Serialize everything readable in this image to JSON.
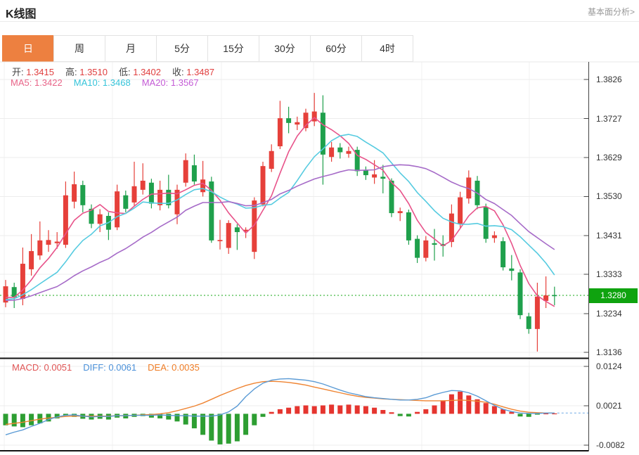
{
  "header": {
    "title": "K线图",
    "link": "基本面分析>"
  },
  "tabs": {
    "items": [
      "日",
      "周",
      "月",
      "5分",
      "15分",
      "30分",
      "60分",
      "4时"
    ],
    "active_index": 0
  },
  "readout": {
    "ohlc": [
      {
        "name": "open",
        "label": "开:",
        "value": "1.3415"
      },
      {
        "name": "high",
        "label": "高:",
        "value": "1.3510"
      },
      {
        "name": "low",
        "label": "低:",
        "value": "1.3402"
      },
      {
        "name": "close",
        "label": "收:",
        "value": "1.3487"
      }
    ],
    "ma": [
      {
        "name": "ma5",
        "label": "MA5:",
        "value": "1.3422",
        "color": "#e86488"
      },
      {
        "name": "ma10",
        "label": "MA10:",
        "value": "1.3468",
        "color": "#35c4da"
      },
      {
        "name": "ma20",
        "label": "MA20:",
        "value": "1.3567",
        "color": "#c45bd6"
      }
    ],
    "macd": [
      {
        "name": "macd",
        "label": "MACD:",
        "value": "0.0051",
        "color": "#e05555"
      },
      {
        "name": "diff",
        "label": "DIFF:",
        "value": "0.0061",
        "color": "#4a90d9"
      },
      {
        "name": "dea",
        "label": "DEA:",
        "value": "0.0035",
        "color": "#ef7d26"
      }
    ]
  },
  "axis": {
    "main_labels": [
      "1.3826",
      "1.3727",
      "1.3629",
      "1.3530",
      "1.3431",
      "1.3333",
      "1.3234",
      "1.3136"
    ],
    "macd_labels": [
      "0.0124",
      "0.0021",
      "-0.0082"
    ],
    "current_price": "1.3280"
  },
  "colors": {
    "up": "#e6403a",
    "down": "#1fa04c",
    "ma5": "#e8538a",
    "ma10": "#56cbe0",
    "ma20": "#a66bc8",
    "diff": "#5b9bd5",
    "dea": "#ef8432",
    "hist_up": "#e5352f",
    "hist_down": "#2d9e32",
    "price_tag": "#0fa30f",
    "dotted_line": "#17a817",
    "tab_active": "#ed8040",
    "value_red": "#e03e3e",
    "label_dark": "#444444",
    "link_gray": "#999999",
    "axis_text": "#333333"
  },
  "chart_data": {
    "type": "candlestick",
    "panels": [
      "price",
      "macd"
    ],
    "ylim": [
      1.3136,
      1.3826
    ],
    "macd_ylim": [
      -0.0082,
      0.0124
    ],
    "current_price": 1.328,
    "candles": [
      [
        1.3262,
        1.3319,
        1.325,
        1.3303
      ],
      [
        1.3301,
        1.3312,
        1.3248,
        1.3275
      ],
      [
        1.3271,
        1.3401,
        1.3255,
        1.336
      ],
      [
        1.3346,
        1.3435,
        1.333,
        1.3392
      ],
      [
        1.3381,
        1.3467,
        1.337,
        1.3419
      ],
      [
        1.3408,
        1.3445,
        1.339,
        1.342
      ],
      [
        1.3412,
        1.344,
        1.3398,
        1.3416
      ],
      [
        1.3408,
        1.3568,
        1.34,
        1.3533
      ],
      [
        1.3517,
        1.3593,
        1.35,
        1.3561
      ],
      [
        1.3559,
        1.357,
        1.349,
        1.3508
      ],
      [
        1.3499,
        1.351,
        1.345,
        1.3461
      ],
      [
        1.3461,
        1.3498,
        1.344,
        1.3485
      ],
      [
        1.3481,
        1.349,
        1.342,
        1.3446
      ],
      [
        1.3452,
        1.356,
        1.3445,
        1.3543
      ],
      [
        1.3533,
        1.3545,
        1.349,
        1.3499
      ],
      [
        1.3515,
        1.3618,
        1.3505,
        1.3556
      ],
      [
        1.3547,
        1.3614,
        1.3535,
        1.357
      ],
      [
        1.3565,
        1.3575,
        1.35,
        1.3512
      ],
      [
        1.3508,
        1.357,
        1.3495,
        1.3547
      ],
      [
        1.3547,
        1.3585,
        1.35,
        1.3508
      ],
      [
        1.3485,
        1.356,
        1.346,
        1.3547
      ],
      [
        1.3565,
        1.3639,
        1.3555,
        1.3622
      ],
      [
        1.3609,
        1.3636,
        1.356,
        1.3568
      ],
      [
        1.3541,
        1.362,
        1.353,
        1.3573
      ],
      [
        1.3568,
        1.358,
        1.3413,
        1.3419
      ],
      [
        1.3417,
        1.3471,
        1.3396,
        1.342
      ],
      [
        1.34,
        1.347,
        1.3385,
        1.3463
      ],
      [
        1.3452,
        1.346,
        1.3395,
        1.344
      ],
      [
        1.3442,
        1.3452,
        1.3425,
        1.3446
      ],
      [
        1.339,
        1.3528,
        1.3372,
        1.352
      ],
      [
        1.351,
        1.3618,
        1.3505,
        1.3607
      ],
      [
        1.36,
        1.3662,
        1.3592,
        1.3645
      ],
      [
        1.3657,
        1.3772,
        1.365,
        1.3728
      ],
      [
        1.3728,
        1.3757,
        1.369,
        1.3716
      ],
      [
        1.3712,
        1.3732,
        1.3698,
        1.3718
      ],
      [
        1.3703,
        1.3752,
        1.3695,
        1.3742
      ],
      [
        1.372,
        1.3792,
        1.3708,
        1.3745
      ],
      [
        1.3742,
        1.3786,
        1.356,
        1.3636
      ],
      [
        1.363,
        1.3668,
        1.3618,
        1.3654
      ],
      [
        1.3654,
        1.3665,
        1.3626,
        1.3642
      ],
      [
        1.3638,
        1.3656,
        1.3628,
        1.3645
      ],
      [
        1.3648,
        1.3656,
        1.3582,
        1.3594
      ],
      [
        1.3596,
        1.3606,
        1.3572,
        1.3584
      ],
      [
        1.3578,
        1.3622,
        1.3562,
        1.3586
      ],
      [
        1.358,
        1.361,
        1.3538,
        1.3575
      ],
      [
        1.357,
        1.3576,
        1.3478,
        1.3488
      ],
      [
        1.3488,
        1.3502,
        1.3468,
        1.3493
      ],
      [
        1.349,
        1.3497,
        1.3408,
        1.3419
      ],
      [
        1.3423,
        1.3432,
        1.3362,
        1.3375
      ],
      [
        1.3375,
        1.343,
        1.3366,
        1.3419
      ],
      [
        1.3412,
        1.3448,
        1.3368,
        1.3408
      ],
      [
        1.341,
        1.3432,
        1.3378,
        1.3405
      ],
      [
        1.3415,
        1.351,
        1.3402,
        1.3487
      ],
      [
        1.3461,
        1.3542,
        1.345,
        1.3528
      ],
      [
        1.3525,
        1.3596,
        1.3512,
        1.3578
      ],
      [
        1.357,
        1.3582,
        1.3498,
        1.3508
      ],
      [
        1.3503,
        1.3512,
        1.3413,
        1.3423
      ],
      [
        1.3425,
        1.3442,
        1.3413,
        1.3432
      ],
      [
        1.3417,
        1.3427,
        1.3343,
        1.3351
      ],
      [
        1.3348,
        1.3382,
        1.3318,
        1.3342
      ],
      [
        1.3338,
        1.3346,
        1.322,
        1.323
      ],
      [
        1.3227,
        1.3236,
        1.3183,
        1.3195
      ],
      [
        1.3195,
        1.3312,
        1.3138,
        1.3277
      ],
      [
        1.3266,
        1.3328,
        1.3248,
        1.328
      ],
      [
        1.3281,
        1.3302,
        1.3255,
        1.3278
      ]
    ],
    "ma_windows": [
      5,
      10,
      20
    ],
    "ma_seed": [
      1.327,
      1.3265,
      1.326,
      1.3258,
      1.3262,
      1.3268,
      1.3272,
      1.327,
      1.3266,
      1.326,
      1.3255,
      1.3258,
      1.3264,
      1.327,
      1.3275,
      1.3272,
      1.3268,
      1.3264,
      1.3266
    ],
    "macd_hist": [
      -0.003,
      -0.0033,
      -0.0035,
      -0.003,
      -0.0025,
      -0.002,
      -0.0012,
      -0.0005,
      -0.0008,
      -0.0013,
      -0.0015,
      -0.0013,
      -0.0015,
      -0.001,
      -0.0012,
      -0.0008,
      -0.0006,
      -0.001,
      -0.0012,
      -0.0015,
      -0.002,
      -0.0028,
      -0.0038,
      -0.0055,
      -0.007,
      -0.008,
      -0.0078,
      -0.0072,
      -0.0055,
      -0.003,
      -0.0008,
      0.0005,
      0.0012,
      0.0016,
      0.002,
      0.0022,
      0.002,
      0.0022,
      0.0024,
      0.0022,
      0.0024,
      0.0022,
      0.002,
      0.0016,
      0.001,
      0.0004,
      -0.0006,
      -0.0007,
      0.0005,
      0.0012,
      0.0022,
      0.0035,
      0.0051,
      0.0058,
      0.0048,
      0.0038,
      0.0028,
      0.002,
      0.0012,
      0.0005,
      -0.0007,
      -0.0008,
      -0.0002,
      0.0001,
      0.0001
    ],
    "macd_diff": [
      -0.0055,
      -0.0048,
      -0.0042,
      -0.0033,
      -0.0025,
      -0.0015,
      -0.0008,
      -0.0004,
      -0.0003,
      -0.0006,
      -0.0008,
      -0.0007,
      -0.0007,
      -0.0005,
      -0.0005,
      -0.0004,
      -0.0004,
      -0.0004,
      -0.0003,
      -0.0004,
      -0.0005,
      -0.0005,
      -0.0006,
      -0.0006,
      -0.0006,
      -0.0003,
      0.0005,
      0.002,
      0.0045,
      0.0065,
      0.008,
      0.0088,
      0.0091,
      0.0092,
      0.009,
      0.0088,
      0.0084,
      0.0078,
      0.007,
      0.0062,
      0.0055,
      0.005,
      0.0045,
      0.0042,
      0.004,
      0.0038,
      0.0036,
      0.0036,
      0.0038,
      0.0042,
      0.005,
      0.0056,
      0.0061,
      0.006,
      0.0055,
      0.0046,
      0.0034,
      0.0022,
      0.0012,
      0.0006,
      0.0002,
      0.0001,
      0.0001,
      0.0002,
      0.0002
    ],
    "macd_dea": [
      -0.0028,
      -0.0025,
      -0.0022,
      -0.0018,
      -0.0014,
      -0.0011,
      -0.0009,
      -0.0007,
      -0.0006,
      -0.0006,
      -0.0006,
      -0.0006,
      -0.0006,
      -0.0005,
      -0.0005,
      -0.0004,
      -0.0003,
      -0.0002,
      0.0,
      0.0003,
      0.0008,
      0.0014,
      0.002,
      0.0028,
      0.0038,
      0.0048,
      0.0057,
      0.0066,
      0.0074,
      0.008,
      0.0084,
      0.0085,
      0.0084,
      0.0082,
      0.0079,
      0.0075,
      0.007,
      0.0065,
      0.006,
      0.0055,
      0.005,
      0.0046,
      0.0043,
      0.0041,
      0.0039,
      0.0038,
      0.0037,
      0.0036,
      0.0035,
      0.0034,
      0.0034,
      0.0034,
      0.0035,
      0.0036,
      0.0035,
      0.0033,
      0.003,
      0.0025,
      0.0018,
      0.0012,
      0.0007,
      0.0004,
      0.0003,
      0.0002,
      0.0002
    ]
  }
}
